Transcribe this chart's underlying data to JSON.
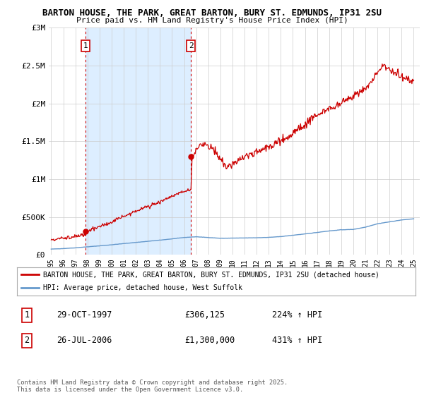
{
  "title1": "BARTON HOUSE, THE PARK, GREAT BARTON, BURY ST. EDMUNDS, IP31 2SU",
  "title2": "Price paid vs. HM Land Registry's House Price Index (HPI)",
  "ylabel_ticks": [
    "£0",
    "£500K",
    "£1M",
    "£1.5M",
    "£2M",
    "£2.5M",
    "£3M"
  ],
  "ytick_values": [
    0,
    500000,
    1000000,
    1500000,
    2000000,
    2500000,
    3000000
  ],
  "ylim": [
    0,
    3000000
  ],
  "xlim_start": 1994.8,
  "xlim_end": 2025.5,
  "xtick_years": [
    1995,
    1996,
    1997,
    1998,
    1999,
    2000,
    2001,
    2002,
    2003,
    2004,
    2005,
    2006,
    2007,
    2008,
    2009,
    2010,
    2011,
    2012,
    2013,
    2014,
    2015,
    2016,
    2017,
    2018,
    2019,
    2020,
    2021,
    2022,
    2023,
    2024,
    2025
  ],
  "hpi_color": "#6699cc",
  "price_color": "#cc0000",
  "shade_color": "#ddeeff",
  "marker1_x": 1997.83,
  "marker1_y": 306125,
  "marker2_x": 2006.57,
  "marker2_y": 1300000,
  "vline1_x": 1997.83,
  "vline2_x": 2006.57,
  "legend_label1": "BARTON HOUSE, THE PARK, GREAT BARTON, BURY ST. EDMUNDS, IP31 2SU (detached house)",
  "legend_label2": "HPI: Average price, detached house, West Suffolk",
  "table_row1": [
    "1",
    "29-OCT-1997",
    "£306,125",
    "224% ↑ HPI"
  ],
  "table_row2": [
    "2",
    "26-JUL-2006",
    "£1,300,000",
    "431% ↑ HPI"
  ],
  "footer": "Contains HM Land Registry data © Crown copyright and database right 2025.\nThis data is licensed under the Open Government Licence v3.0.",
  "background_color": "#ffffff"
}
